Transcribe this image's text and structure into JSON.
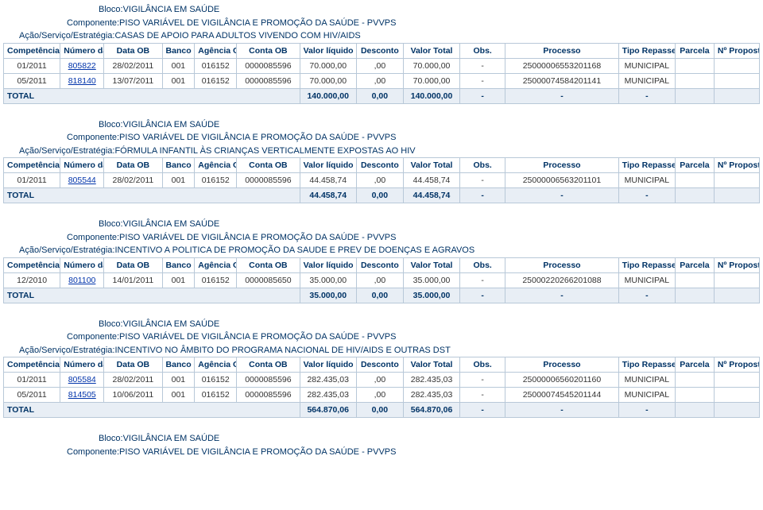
{
  "labels": {
    "bloco": "Bloco:",
    "componente": "Componente:",
    "acao": "Ação/Serviço/Estratégia:",
    "total": "TOTAL"
  },
  "headers": {
    "competencia": "Competência",
    "numero_ob": "Número da OB",
    "data_ob": "Data OB",
    "banco_ob": "Banco OB",
    "agencia_ob": "Agência OB",
    "conta_ob": "Conta OB",
    "valor_liquido": "Valor líquido",
    "desconto": "Desconto",
    "valor_total": "Valor Total",
    "obs": "Obs.",
    "processo": "Processo",
    "tipo_repasse": "Tipo Repasse",
    "parcela": "Parcela",
    "n_proposta": "Nº Proposta"
  },
  "sections": [
    {
      "bloco": "VIGILÂNCIA EM SAÚDE",
      "componente": "PISO VARIÁVEL DE VIGILÂNCIA E PROMOÇÃO DA SAÚDE - PVVPS",
      "acao": "CASAS DE APOIO PARA ADULTOS VIVENDO COM HIV/AIDS",
      "rows": [
        {
          "competencia": "01/2011",
          "numero_ob": "805822",
          "data_ob": "28/02/2011",
          "banco_ob": "001",
          "agencia_ob": "016152",
          "conta_ob": "0000085596",
          "valor_liquido": "70.000,00",
          "desconto": ",00",
          "valor_total": "70.000,00",
          "obs": "-",
          "processo": "25000006553201168",
          "tipo_repasse": "MUNICIPAL",
          "parcela": "",
          "n_proposta": ""
        },
        {
          "competencia": "05/2011",
          "numero_ob": "818140",
          "data_ob": "13/07/2011",
          "banco_ob": "001",
          "agencia_ob": "016152",
          "conta_ob": "0000085596",
          "valor_liquido": "70.000,00",
          "desconto": ",00",
          "valor_total": "70.000,00",
          "obs": "-",
          "processo": "25000074584201141",
          "tipo_repasse": "MUNICIPAL",
          "parcela": "",
          "n_proposta": ""
        }
      ],
      "total": {
        "valor_liquido": "140.000,00",
        "desconto": "0,00",
        "valor_total": "140.000,00",
        "obs": "-",
        "processo": "-",
        "tipo_repasse": "-"
      }
    },
    {
      "bloco": "VIGILÂNCIA EM SAÚDE",
      "componente": "PISO VARIÁVEL DE VIGILÂNCIA E PROMOÇÃO DA SAÚDE - PVVPS",
      "acao": "FÓRMULA INFANTIL ÀS CRIANÇAS VERTICALMENTE EXPOSTAS AO HIV",
      "rows": [
        {
          "competencia": "01/2011",
          "numero_ob": "805544",
          "data_ob": "28/02/2011",
          "banco_ob": "001",
          "agencia_ob": "016152",
          "conta_ob": "0000085596",
          "valor_liquido": "44.458,74",
          "desconto": ",00",
          "valor_total": "44.458,74",
          "obs": "-",
          "processo": "25000006563201101",
          "tipo_repasse": "MUNICIPAL",
          "parcela": "",
          "n_proposta": ""
        }
      ],
      "total": {
        "valor_liquido": "44.458,74",
        "desconto": "0,00",
        "valor_total": "44.458,74",
        "obs": "-",
        "processo": "-",
        "tipo_repasse": "-"
      }
    },
    {
      "bloco": "VIGILÂNCIA EM SAÚDE",
      "componente": "PISO VARIÁVEL DE VIGILÂNCIA E PROMOÇÃO DA SAÚDE - PVVPS",
      "acao": "INCENTIVO A POLITICA DE PROMOÇÃO DA SAUDE E PREV DE DOENÇAS E AGRAVOS",
      "rows": [
        {
          "competencia": "12/2010",
          "numero_ob": "801100",
          "data_ob": "14/01/2011",
          "banco_ob": "001",
          "agencia_ob": "016152",
          "conta_ob": "0000085650",
          "valor_liquido": "35.000,00",
          "desconto": ",00",
          "valor_total": "35.000,00",
          "obs": "-",
          "processo": "25000220266201088",
          "tipo_repasse": "MUNICIPAL",
          "parcela": "",
          "n_proposta": ""
        }
      ],
      "total": {
        "valor_liquido": "35.000,00",
        "desconto": "0,00",
        "valor_total": "35.000,00",
        "obs": "-",
        "processo": "-",
        "tipo_repasse": "-"
      }
    },
    {
      "bloco": "VIGILÂNCIA EM SAÚDE",
      "componente": "PISO VARIÁVEL DE VIGILÂNCIA E PROMOÇÃO DA SAÚDE - PVVPS",
      "acao": "INCENTIVO NO ÂMBITO DO PROGRAMA NACIONAL DE HIV/AIDS E OUTRAS DST",
      "rows": [
        {
          "competencia": "01/2011",
          "numero_ob": "805584",
          "data_ob": "28/02/2011",
          "banco_ob": "001",
          "agencia_ob": "016152",
          "conta_ob": "0000085596",
          "valor_liquido": "282.435,03",
          "desconto": ",00",
          "valor_total": "282.435,03",
          "obs": "-",
          "processo": "25000006560201160",
          "tipo_repasse": "MUNICIPAL",
          "parcela": "",
          "n_proposta": ""
        },
        {
          "competencia": "05/2011",
          "numero_ob": "814505",
          "data_ob": "10/06/2011",
          "banco_ob": "001",
          "agencia_ob": "016152",
          "conta_ob": "0000085596",
          "valor_liquido": "282.435,03",
          "desconto": ",00",
          "valor_total": "282.435,03",
          "obs": "-",
          "processo": "25000074545201144",
          "tipo_repasse": "MUNICIPAL",
          "parcela": "",
          "n_proposta": ""
        }
      ],
      "total": {
        "valor_liquido": "564.870,06",
        "desconto": "0,00",
        "valor_total": "564.870,06",
        "obs": "-",
        "processo": "-",
        "tipo_repasse": "-"
      }
    }
  ],
  "trailing": {
    "bloco": "VIGILÂNCIA EM SAÚDE",
    "componente": "PISO VARIÁVEL DE VIGILÂNCIA E PROMOÇÃO DA SAÚDE - PVVPS"
  }
}
